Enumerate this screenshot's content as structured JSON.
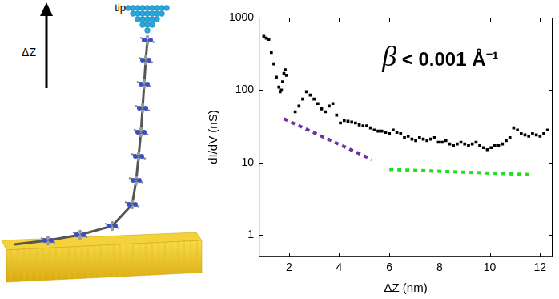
{
  "chart_data": {
    "type": "scatter",
    "annotations": [
      "β < 0.001 Å⁻¹"
    ],
    "x_label": "ΔZ (nm)",
    "y_label": "dI/dV (nS)",
    "xlim": [
      0.8,
      12.5
    ],
    "xticks": [
      2,
      4,
      6,
      8,
      10,
      12
    ],
    "ylim": [
      0.5,
      1000
    ],
    "yticks": [
      1,
      10,
      100,
      1000
    ],
    "log": "y",
    "grid": false,
    "series": [
      {
        "type": "scatter",
        "color": "#000000",
        "marker": "square",
        "line_style": "none",
        "x": [
          1.0,
          1.1,
          1.2,
          1.3,
          1.4,
          1.5,
          1.6,
          1.65,
          1.7,
          1.75,
          1.8,
          1.85,
          1.9,
          2.25,
          2.4,
          2.55,
          2.7,
          2.85,
          3.0,
          3.15,
          3.3,
          3.45,
          3.6,
          3.75,
          3.9,
          4.05,
          4.2,
          4.35,
          4.5,
          4.65,
          4.8,
          4.95,
          5.1,
          5.25,
          5.4,
          5.55,
          5.7,
          5.85,
          6.0,
          6.15,
          6.3,
          6.45,
          6.6,
          6.75,
          6.9,
          7.05,
          7.2,
          7.35,
          7.5,
          7.65,
          7.8,
          7.95,
          8.1,
          8.25,
          8.4,
          8.55,
          8.7,
          8.85,
          9.0,
          9.15,
          9.3,
          9.45,
          9.6,
          9.75,
          9.9,
          10.05,
          10.2,
          10.35,
          10.5,
          10.65,
          10.8,
          10.95,
          11.1,
          11.25,
          11.4,
          11.55,
          11.7,
          11.85,
          12.0,
          12.15,
          12.3
        ],
        "values": [
          550,
          520,
          500,
          330,
          230,
          150,
          110,
          95,
          100,
          130,
          170,
          190,
          160,
          50,
          60,
          75,
          95,
          85,
          75,
          65,
          55,
          50,
          60,
          65,
          45,
          35,
          38,
          37,
          36,
          35,
          33,
          32,
          32,
          30,
          28,
          27,
          27,
          26,
          25,
          28,
          26,
          25,
          22,
          23,
          21,
          20,
          22,
          21,
          20,
          21,
          22,
          19,
          19,
          20,
          18,
          17,
          18,
          19,
          18,
          17,
          18,
          19,
          17,
          16,
          15,
          16,
          17,
          17,
          18,
          20,
          22,
          30,
          28,
          25,
          24,
          23,
          25,
          24,
          23,
          25,
          28
        ]
      },
      {
        "type": "line",
        "color": "#7030a0",
        "marker": "none",
        "line_style": "dotted",
        "x": [
          1.8,
          5.3
        ],
        "values": [
          40,
          11
        ]
      },
      {
        "type": "line",
        "color": "#22dd22",
        "marker": "none",
        "line_style": "dotted",
        "x": [
          6.0,
          11.7
        ],
        "values": [
          8,
          6.8
        ]
      }
    ]
  },
  "illustration": {
    "tip_label": "tip",
    "arrow_label": "ΔZ"
  }
}
